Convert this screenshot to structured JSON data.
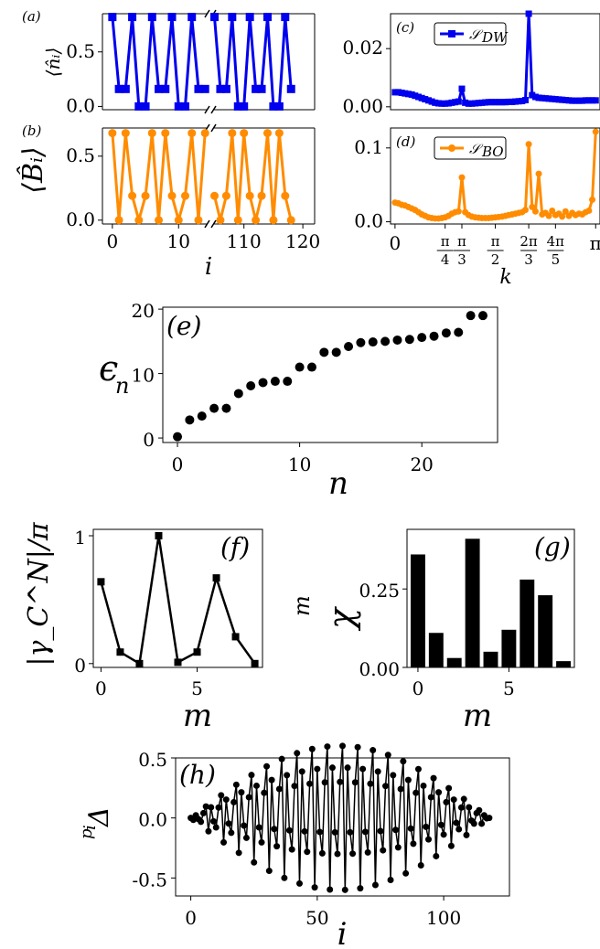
{
  "chart_data": [
    {
      "id": "a",
      "panel_label": "(a)",
      "type": "line",
      "ylabel": "⟨n̂ᵢ⟩",
      "xlabel": "",
      "ylim": [
        -0.03,
        0.85
      ],
      "yticks": [
        0.0,
        0.5
      ],
      "color": "#0000ee",
      "marker": "square",
      "left": {
        "xlim": [
          -1.5,
          14.8
        ],
        "x": [
          0,
          1,
          2,
          3,
          4,
          5,
          6,
          7,
          8,
          9,
          10,
          11,
          12,
          13,
          14
        ],
        "y": [
          0.82,
          0.16,
          0.16,
          0.82,
          0.0,
          0.0,
          0.82,
          0.16,
          0.16,
          0.82,
          0.0,
          0.0,
          0.82,
          0.16,
          0.16
        ]
      },
      "right": {
        "xlim": [
          104.3,
          122
        ],
        "x": [
          105,
          106,
          107,
          108,
          109,
          110,
          111,
          112,
          113,
          114,
          115,
          116,
          117,
          118
        ],
        "y": [
          0.82,
          0.16,
          0.16,
          0.82,
          0.0,
          0.0,
          0.82,
          0.16,
          0.16,
          0.82,
          0.0,
          0.0,
          0.82,
          0.16
        ]
      },
      "xticks_left": [],
      "xticks_right": []
    },
    {
      "id": "b",
      "panel_label": "(b)",
      "type": "line",
      "ylabel": "⟨B̂ᵢ⟩",
      "xlabel": "i",
      "ylim": [
        -0.03,
        0.72
      ],
      "yticks": [
        0.0,
        0.5
      ],
      "color": "#ff8c00",
      "marker": "circle",
      "left": {
        "xlim": [
          -1.5,
          14.8
        ],
        "x": [
          0,
          1,
          2,
          3,
          4,
          5,
          6,
          7,
          8,
          9,
          10,
          11,
          12,
          13,
          14
        ],
        "y": [
          0.68,
          0.0,
          0.68,
          0.19,
          0.0,
          0.19,
          0.68,
          0.0,
          0.68,
          0.19,
          0.0,
          0.19,
          0.68,
          0.0,
          0.68
        ]
      },
      "right": {
        "xlim": [
          104.3,
          122
        ],
        "x": [
          105,
          106,
          107,
          108,
          109,
          110,
          111,
          112,
          113,
          114,
          115,
          116,
          117,
          118
        ],
        "y": [
          0.19,
          0.0,
          0.19,
          0.68,
          0.0,
          0.68,
          0.19,
          0.0,
          0.19,
          0.68,
          0.0,
          0.68,
          0.19,
          0.0
        ]
      },
      "xticks_left": [
        0,
        10
      ],
      "xticks_right": [
        110,
        120
      ]
    },
    {
      "id": "c",
      "panel_label": "(c)",
      "type": "line",
      "ylabel": "",
      "xlabel": "",
      "xlim": [
        -0.07,
        3.21
      ],
      "ylim": [
        -0.001,
        0.032
      ],
      "yticks": [
        0.0,
        0.02
      ],
      "color": "#0000ee",
      "marker": "square",
      "legend": "𝒮",
      "legend_sub": "DW",
      "legend_position": "top-left",
      "x": [
        0,
        0.052,
        0.105,
        0.157,
        0.209,
        0.262,
        0.314,
        0.367,
        0.419,
        0.471,
        0.524,
        0.576,
        0.628,
        0.681,
        0.733,
        0.785,
        0.838,
        0.89,
        0.942,
        0.995,
        1.047,
        1.099,
        1.152,
        1.204,
        1.257,
        1.309,
        1.361,
        1.414,
        1.466,
        1.518,
        1.571,
        1.623,
        1.676,
        1.728,
        1.78,
        1.833,
        1.885,
        1.937,
        1.99,
        2.042,
        2.094,
        2.147,
        2.199,
        2.251,
        2.304,
        2.356,
        2.409,
        2.461,
        2.513,
        2.566,
        2.618,
        2.67,
        2.723,
        2.775,
        2.827,
        2.88,
        2.932,
        2.985,
        3.037,
        3.089,
        3.142
      ],
      "y": [
        0.005,
        0.005,
        0.0048,
        0.0046,
        0.0044,
        0.0042,
        0.0038,
        0.0034,
        0.003,
        0.0026,
        0.0022,
        0.0018,
        0.0014,
        0.0012,
        0.0011,
        0.0011,
        0.0012,
        0.0014,
        0.0016,
        0.0018,
        0.0062,
        0.0014,
        0.0011,
        0.0011,
        0.0012,
        0.0013,
        0.0014,
        0.0015,
        0.0016,
        0.0016,
        0.0016,
        0.0016,
        0.0016,
        0.0016,
        0.0017,
        0.0017,
        0.0018,
        0.0019,
        0.002,
        0.0023,
        0.032,
        0.004,
        0.0034,
        0.0031,
        0.003,
        0.0029,
        0.0028,
        0.0027,
        0.0026,
        0.0025,
        0.0024,
        0.0023,
        0.0022,
        0.0021,
        0.0021,
        0.0021,
        0.0021,
        0.0022,
        0.0022,
        0.0022,
        0.0022
      ]
    },
    {
      "id": "d",
      "panel_label": "(d)",
      "type": "line",
      "ylabel": "",
      "xlabel": "k",
      "xlim": [
        -0.07,
        3.21
      ],
      "ylim": [
        -0.003,
        0.127
      ],
      "yticks": [
        0.0,
        0.1
      ],
      "color": "#ff8c00",
      "marker": "circle",
      "legend": "𝒮",
      "legend_sub": "BO",
      "legend_position": "top-left",
      "x": [
        0,
        0.052,
        0.105,
        0.157,
        0.209,
        0.262,
        0.314,
        0.367,
        0.419,
        0.471,
        0.524,
        0.576,
        0.628,
        0.681,
        0.733,
        0.785,
        0.838,
        0.89,
        0.942,
        0.995,
        1.047,
        1.099,
        1.152,
        1.204,
        1.257,
        1.309,
        1.361,
        1.414,
        1.466,
        1.518,
        1.571,
        1.623,
        1.676,
        1.728,
        1.78,
        1.833,
        1.885,
        1.937,
        1.99,
        2.042,
        2.094,
        2.147,
        2.199,
        2.251,
        2.304,
        2.356,
        2.409,
        2.461,
        2.513,
        2.566,
        2.618,
        2.67,
        2.723,
        2.775,
        2.827,
        2.88,
        2.932,
        2.985,
        3.037,
        3.089,
        3.142
      ],
      "y": [
        0.026,
        0.025,
        0.023,
        0.022,
        0.02,
        0.018,
        0.016,
        0.013,
        0.01,
        0.008,
        0.006,
        0.005,
        0.0045,
        0.0045,
        0.005,
        0.006,
        0.008,
        0.011,
        0.013,
        0.014,
        0.06,
        0.013,
        0.009,
        0.007,
        0.006,
        0.0055,
        0.005,
        0.005,
        0.005,
        0.0055,
        0.006,
        0.0065,
        0.007,
        0.008,
        0.009,
        0.01,
        0.011,
        0.012,
        0.013,
        0.016,
        0.105,
        0.02,
        0.014,
        0.065,
        0.01,
        0.012,
        0.008,
        0.015,
        0.009,
        0.011,
        0.007,
        0.014,
        0.008,
        0.012,
        0.009,
        0.011,
        0.01,
        0.013,
        0.015,
        0.03,
        0.122
      ],
      "xticks": [
        0,
        0.785,
        1.047,
        1.571,
        2.094,
        2.513,
        3.142
      ],
      "xticklabels": [
        {
          "num": "0",
          "den": ""
        },
        {
          "num": "π",
          "den": "4"
        },
        {
          "num": "π",
          "den": "3"
        },
        {
          "num": "π",
          "den": "2"
        },
        {
          "num": "2π",
          "den": "3"
        },
        {
          "num": "4π",
          "den": "5"
        },
        {
          "num": "π",
          "den": ""
        }
      ]
    },
    {
      "id": "e",
      "panel_label": "(e)",
      "type": "scatter",
      "ylabel": "ϵ",
      "ylabel_sub": "n",
      "xlabel": "n",
      "xlim": [
        -1.2,
        26.2
      ],
      "ylim": [
        -0.7,
        20.3
      ],
      "xticks": [
        0,
        10,
        20
      ],
      "yticks": [
        0,
        10,
        20
      ],
      "x": [
        0,
        1,
        2,
        3,
        4,
        5,
        6,
        7,
        8,
        9,
        10,
        11,
        12,
        13,
        14,
        15,
        16,
        17,
        18,
        19,
        20,
        21,
        22,
        23,
        24,
        25
      ],
      "y": [
        0.2,
        2.8,
        3.4,
        4.6,
        4.6,
        6.9,
        8.1,
        8.6,
        8.8,
        8.8,
        11.0,
        11.0,
        13.3,
        13.3,
        14.2,
        14.8,
        14.9,
        15.0,
        15.2,
        15.3,
        15.6,
        15.8,
        16.3,
        16.4,
        19.0,
        19.0
      ]
    },
    {
      "id": "f",
      "panel_label": "(f)",
      "type": "line",
      "ylabel": "|γ_C^N|/π",
      "xlabel": "m",
      "xlim": [
        -0.4,
        8.4
      ],
      "ylim": [
        -0.03,
        1.05
      ],
      "xticks": [
        0,
        5
      ],
      "yticks": [
        0,
        1
      ],
      "marker": "square",
      "x": [
        0,
        1,
        2,
        3,
        4,
        5,
        6,
        7,
        8
      ],
      "y": [
        0.64,
        0.09,
        0.0,
        1.0,
        0.01,
        0.09,
        0.67,
        0.21,
        0.0
      ]
    },
    {
      "id": "g",
      "panel_label": "(g)",
      "type": "bar",
      "ylabel": "χ",
      "ylabel_sub": "m",
      "xlabel": "m",
      "xlim": [
        -0.6,
        8.6
      ],
      "ylim": [
        0,
        0.44
      ],
      "xticks": [
        0,
        5
      ],
      "yticks": [
        0.0,
        0.25
      ],
      "categories": [
        0,
        1,
        2,
        3,
        4,
        5,
        6,
        7,
        8
      ],
      "values": [
        0.36,
        0.11,
        0.03,
        0.41,
        0.05,
        0.12,
        0.28,
        0.23,
        0.02
      ]
    },
    {
      "id": "h",
      "panel_label": "(h)",
      "type": "line",
      "ylabel": "Δ",
      "ylabel_sup": "p",
      "ylabel_sub": "i",
      "xlabel": "i",
      "xlim": [
        -6,
        126
      ],
      "ylim": [
        -0.65,
        0.5
      ],
      "xticks": [
        0,
        50,
        100
      ],
      "yticks": [
        -0.5,
        0.0,
        0.5
      ],
      "marker": "circle",
      "n_points": 119,
      "envelope_amplitude": 0.6,
      "pattern": [
        1,
        -1,
        0.7,
        -0.2,
        -0.5,
        0.5
      ]
    }
  ]
}
